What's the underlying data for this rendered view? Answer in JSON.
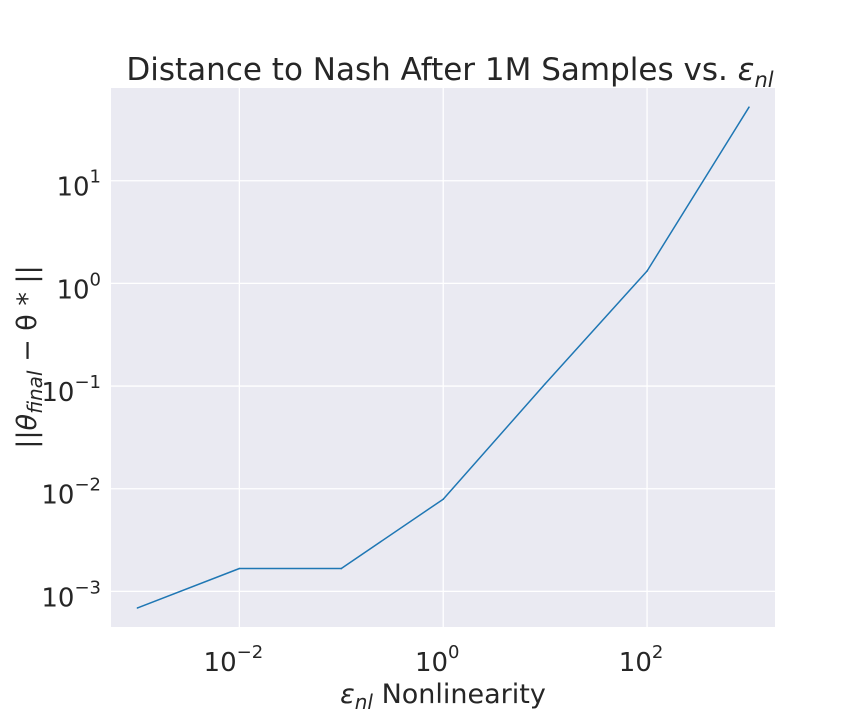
{
  "chart_data": {
    "type": "line",
    "title": {
      "text": "Distance to Nash After 1M Samples vs. ",
      "symbol": "ε",
      "symbol_sub": "nl"
    },
    "xlabel": {
      "symbol": "ε",
      "symbol_sub": "nl",
      "text": " Nonlinearity"
    },
    "ylabel": {
      "pre": "||",
      "theta": "θ",
      "sub": "final",
      "post": " − θ * ||"
    },
    "xscale": "log",
    "yscale": "log",
    "xlim": [
      0.00055,
      1800
    ],
    "ylim": [
      0.00045,
      80
    ],
    "grid": true,
    "x_ticks": [
      {
        "base": "10",
        "exp": "−2",
        "value": 0.01
      },
      {
        "base": "10",
        "exp": "0",
        "value": 1
      },
      {
        "base": "10",
        "exp": "2",
        "value": 100
      }
    ],
    "y_ticks": [
      {
        "base": "10",
        "exp": "−3",
        "value": 0.001
      },
      {
        "base": "10",
        "exp": "−2",
        "value": 0.01
      },
      {
        "base": "10",
        "exp": "−1",
        "value": 0.1
      },
      {
        "base": "10",
        "exp": "0",
        "value": 1
      },
      {
        "base": "10",
        "exp": "1",
        "value": 10
      }
    ],
    "series": [
      {
        "color": "#1f77b4",
        "x": [
          0.001,
          0.01,
          0.1,
          1,
          10,
          100,
          1000
        ],
        "y": [
          0.00069,
          0.00167,
          0.00167,
          0.0079,
          0.105,
          1.32,
          52
        ]
      }
    ]
  }
}
